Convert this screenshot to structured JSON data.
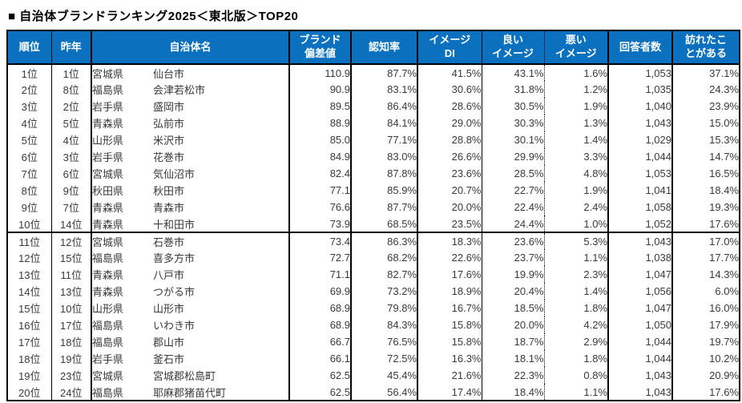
{
  "title": "■ 自治体ブランドランキング2025＜東北版＞TOP20",
  "colors": {
    "header_bg": "#0b71bf",
    "header_text": "#ffffff",
    "border": "#000000",
    "body_text": "#3a3a3a",
    "page_bg": "#ffffff"
  },
  "chart_data": {
    "type": "table",
    "title": "自治体ブランドランキング2025＜東北版＞TOP20",
    "columns": [
      "順位",
      "昨年",
      "自治体名",
      "ブランド偏差値",
      "認知率",
      "イメージDI",
      "良いイメージ",
      "悪いイメージ",
      "回答者数",
      "訪れたことがある"
    ],
    "header_display": [
      "順位",
      "昨年",
      "自治体名",
      "ブランド\n偏差値",
      "認知率",
      "イメージ\nDI",
      "良い\nイメージ",
      "悪い\nイメージ",
      "回答者数",
      "訪れたこ\nとがある"
    ],
    "group_separator_before_row_index": 10,
    "rows": [
      {
        "rank": "1位",
        "last_year": "1位",
        "prefecture": "宮城県",
        "city": "仙台市",
        "brand_score": "110.9",
        "recognition": "87.7%",
        "image_di": "41.5%",
        "good_image": "43.1%",
        "bad_image": "1.6%",
        "respondents": "1,053",
        "visited": "37.1%"
      },
      {
        "rank": "2位",
        "last_year": "8位",
        "prefecture": "福島県",
        "city": "会津若松市",
        "brand_score": "90.9",
        "recognition": "83.1%",
        "image_di": "30.6%",
        "good_image": "31.8%",
        "bad_image": "1.2%",
        "respondents": "1,035",
        "visited": "24.3%"
      },
      {
        "rank": "3位",
        "last_year": "2位",
        "prefecture": "岩手県",
        "city": "盛岡市",
        "brand_score": "89.5",
        "recognition": "86.4%",
        "image_di": "28.6%",
        "good_image": "30.5%",
        "bad_image": "1.9%",
        "respondents": "1,040",
        "visited": "23.9%"
      },
      {
        "rank": "4位",
        "last_year": "5位",
        "prefecture": "青森県",
        "city": "弘前市",
        "brand_score": "88.9",
        "recognition": "84.1%",
        "image_di": "29.0%",
        "good_image": "30.3%",
        "bad_image": "1.3%",
        "respondents": "1,043",
        "visited": "15.0%"
      },
      {
        "rank": "5位",
        "last_year": "4位",
        "prefecture": "山形県",
        "city": "米沢市",
        "brand_score": "85.0",
        "recognition": "77.1%",
        "image_di": "28.8%",
        "good_image": "30.1%",
        "bad_image": "1.4%",
        "respondents": "1,029",
        "visited": "15.3%"
      },
      {
        "rank": "6位",
        "last_year": "3位",
        "prefecture": "岩手県",
        "city": "花巻市",
        "brand_score": "84.9",
        "recognition": "83.0%",
        "image_di": "26.6%",
        "good_image": "29.9%",
        "bad_image": "3.3%",
        "respondents": "1,044",
        "visited": "14.7%"
      },
      {
        "rank": "7位",
        "last_year": "6位",
        "prefecture": "宮城県",
        "city": "気仙沼市",
        "brand_score": "82.4",
        "recognition": "87.8%",
        "image_di": "23.6%",
        "good_image": "28.5%",
        "bad_image": "4.8%",
        "respondents": "1,053",
        "visited": "16.5%"
      },
      {
        "rank": "8位",
        "last_year": "9位",
        "prefecture": "秋田県",
        "city": "秋田市",
        "brand_score": "77.1",
        "recognition": "85.9%",
        "image_di": "20.7%",
        "good_image": "22.7%",
        "bad_image": "1.9%",
        "respondents": "1,041",
        "visited": "18.4%"
      },
      {
        "rank": "9位",
        "last_year": "7位",
        "prefecture": "青森県",
        "city": "青森市",
        "brand_score": "76.6",
        "recognition": "87.7%",
        "image_di": "20.0%",
        "good_image": "22.4%",
        "bad_image": "2.4%",
        "respondents": "1,058",
        "visited": "19.3%"
      },
      {
        "rank": "10位",
        "last_year": "14位",
        "prefecture": "青森県",
        "city": "十和田市",
        "brand_score": "73.9",
        "recognition": "68.5%",
        "image_di": "23.5%",
        "good_image": "24.4%",
        "bad_image": "1.0%",
        "respondents": "1,052",
        "visited": "17.6%"
      },
      {
        "rank": "11位",
        "last_year": "12位",
        "prefecture": "宮城県",
        "city": "石巻市",
        "brand_score": "73.4",
        "recognition": "86.3%",
        "image_di": "18.3%",
        "good_image": "23.6%",
        "bad_image": "5.3%",
        "respondents": "1,043",
        "visited": "17.0%"
      },
      {
        "rank": "12位",
        "last_year": "15位",
        "prefecture": "福島県",
        "city": "喜多方市",
        "brand_score": "72.7",
        "recognition": "68.2%",
        "image_di": "22.6%",
        "good_image": "23.7%",
        "bad_image": "1.1%",
        "respondents": "1,038",
        "visited": "17.7%"
      },
      {
        "rank": "13位",
        "last_year": "11位",
        "prefecture": "青森県",
        "city": "八戸市",
        "brand_score": "71.1",
        "recognition": "82.7%",
        "image_di": "17.6%",
        "good_image": "19.9%",
        "bad_image": "2.3%",
        "respondents": "1,047",
        "visited": "14.3%"
      },
      {
        "rank": "14位",
        "last_year": "13位",
        "prefecture": "青森県",
        "city": "つがる市",
        "brand_score": "69.9",
        "recognition": "73.2%",
        "image_di": "18.9%",
        "good_image": "20.4%",
        "bad_image": "1.4%",
        "respondents": "1,056",
        "visited": "6.0%"
      },
      {
        "rank": "15位",
        "last_year": "10位",
        "prefecture": "山形県",
        "city": "山形市",
        "brand_score": "68.9",
        "recognition": "79.8%",
        "image_di": "16.7%",
        "good_image": "18.5%",
        "bad_image": "1.8%",
        "respondents": "1,047",
        "visited": "16.0%"
      },
      {
        "rank": "16位",
        "last_year": "17位",
        "prefecture": "福島県",
        "city": "いわき市",
        "brand_score": "68.9",
        "recognition": "84.3%",
        "image_di": "15.8%",
        "good_image": "20.0%",
        "bad_image": "4.2%",
        "respondents": "1,050",
        "visited": "17.9%"
      },
      {
        "rank": "17位",
        "last_year": "18位",
        "prefecture": "福島県",
        "city": "郡山市",
        "brand_score": "66.7",
        "recognition": "76.5%",
        "image_di": "15.8%",
        "good_image": "18.7%",
        "bad_image": "2.9%",
        "respondents": "1,044",
        "visited": "19.7%"
      },
      {
        "rank": "18位",
        "last_year": "19位",
        "prefecture": "岩手県",
        "city": "釜石市",
        "brand_score": "66.1",
        "recognition": "72.5%",
        "image_di": "16.3%",
        "good_image": "18.1%",
        "bad_image": "1.8%",
        "respondents": "1,044",
        "visited": "10.2%"
      },
      {
        "rank": "19位",
        "last_year": "23位",
        "prefecture": "宮城県",
        "city": "宮城郡松島町",
        "brand_score": "62.5",
        "recognition": "45.4%",
        "image_di": "21.6%",
        "good_image": "22.3%",
        "bad_image": "0.8%",
        "respondents": "1,043",
        "visited": "20.9%"
      },
      {
        "rank": "20位",
        "last_year": "24位",
        "prefecture": "福島県",
        "city": "耶麻郡猪苗代町",
        "brand_score": "62.5",
        "recognition": "56.4%",
        "image_di": "17.4%",
        "good_image": "18.4%",
        "bad_image": "1.1%",
        "respondents": "1,043",
        "visited": "17.6%"
      }
    ]
  }
}
